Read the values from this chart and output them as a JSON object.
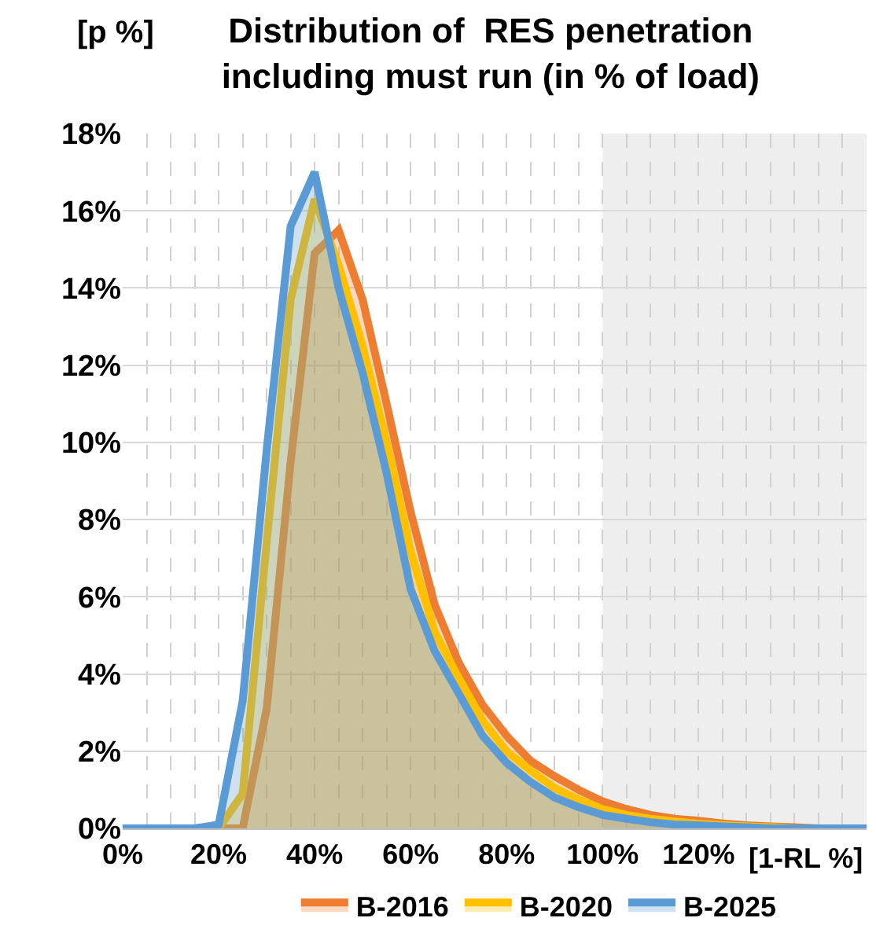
{
  "chart_data": {
    "type": "area",
    "title": "Distribution of  RES penetration\nincluding must run (in % of load)",
    "ylabel": "[p %]",
    "xlabel": "[1-RL %]",
    "x": [
      0,
      5,
      10,
      15,
      20,
      25,
      30,
      35,
      40,
      45,
      50,
      55,
      60,
      65,
      70,
      75,
      80,
      85,
      90,
      95,
      100,
      105,
      110,
      115,
      120,
      125,
      130,
      135,
      140,
      145,
      150,
      155
    ],
    "series": [
      {
        "name": "B-2016",
        "color": "#ed7d31",
        "values": [
          0,
          0,
          0,
          0,
          0,
          0,
          3.1,
          9.5,
          14.9,
          15.5,
          13.7,
          11.0,
          8.2,
          5.8,
          4.3,
          3.2,
          2.4,
          1.75,
          1.35,
          1.0,
          0.7,
          0.5,
          0.35,
          0.25,
          0.2,
          0.13,
          0.08,
          0.05,
          0.03,
          0,
          0,
          0
        ]
      },
      {
        "name": "B-2020",
        "color": "#ffc000",
        "values": [
          0,
          0,
          0,
          0,
          0,
          0.9,
          7.4,
          13.7,
          16.3,
          14.6,
          12.5,
          10.0,
          7.2,
          5.1,
          3.9,
          2.8,
          2.0,
          1.5,
          1.05,
          0.75,
          0.5,
          0.35,
          0.25,
          0.18,
          0.12,
          0.08,
          0.05,
          0.03,
          0,
          0,
          0,
          0
        ]
      },
      {
        "name": "B-2025",
        "color": "#5b9bd5",
        "values": [
          0,
          0,
          0,
          0,
          0.1,
          3.3,
          9.8,
          15.6,
          17.0,
          14.0,
          11.8,
          9.2,
          6.2,
          4.6,
          3.5,
          2.4,
          1.7,
          1.2,
          0.8,
          0.55,
          0.35,
          0.25,
          0.16,
          0.1,
          0.08,
          0.05,
          0.03,
          0,
          0,
          0,
          0,
          0
        ]
      }
    ],
    "xlim": [
      0,
      155
    ],
    "xticks": [
      {
        "value": 0,
        "label": "0%"
      },
      {
        "value": 5,
        "label": null
      },
      {
        "value": 10,
        "label": null
      },
      {
        "value": 15,
        "label": null
      },
      {
        "value": 20,
        "label": "20%"
      },
      {
        "value": 25,
        "label": null
      },
      {
        "value": 30,
        "label": null
      },
      {
        "value": 35,
        "label": null
      },
      {
        "value": 40,
        "label": "40%"
      },
      {
        "value": 45,
        "label": null
      },
      {
        "value": 50,
        "label": null
      },
      {
        "value": 55,
        "label": null
      },
      {
        "value": 60,
        "label": "60%"
      },
      {
        "value": 65,
        "label": null
      },
      {
        "value": 70,
        "label": null
      },
      {
        "value": 75,
        "label": null
      },
      {
        "value": 80,
        "label": "80%"
      },
      {
        "value": 85,
        "label": null
      },
      {
        "value": 90,
        "label": null
      },
      {
        "value": 95,
        "label": null
      },
      {
        "value": 100,
        "label": "100%"
      },
      {
        "value": 105,
        "label": null
      },
      {
        "value": 110,
        "label": null
      },
      {
        "value": 115,
        "label": null
      },
      {
        "value": 120,
        "label": "120%"
      },
      {
        "value": 125,
        "label": null
      },
      {
        "value": 130,
        "label": null
      },
      {
        "value": 135,
        "label": null
      },
      {
        "value": 140,
        "label": null
      },
      {
        "value": 145,
        "label": null
      },
      {
        "value": 150,
        "label": null
      }
    ],
    "ylim": [
      0,
      18
    ],
    "yticks": [
      {
        "value": 0,
        "label": "0%"
      },
      {
        "value": 2,
        "label": "2%"
      },
      {
        "value": 4,
        "label": "4%"
      },
      {
        "value": 6,
        "label": "6%"
      },
      {
        "value": 8,
        "label": "8%"
      },
      {
        "value": 10,
        "label": "10%"
      },
      {
        "value": 12,
        "label": "12%"
      },
      {
        "value": 14,
        "label": "14%"
      },
      {
        "value": 16,
        "label": "16%"
      },
      {
        "value": 18,
        "label": "18%"
      }
    ],
    "bands": [
      {
        "axis": "x",
        "from": 100,
        "to": 155,
        "color": "#eeeeee"
      }
    ],
    "grid": true,
    "legend": "bottom",
    "marker": "none",
    "line_style": "solid"
  }
}
